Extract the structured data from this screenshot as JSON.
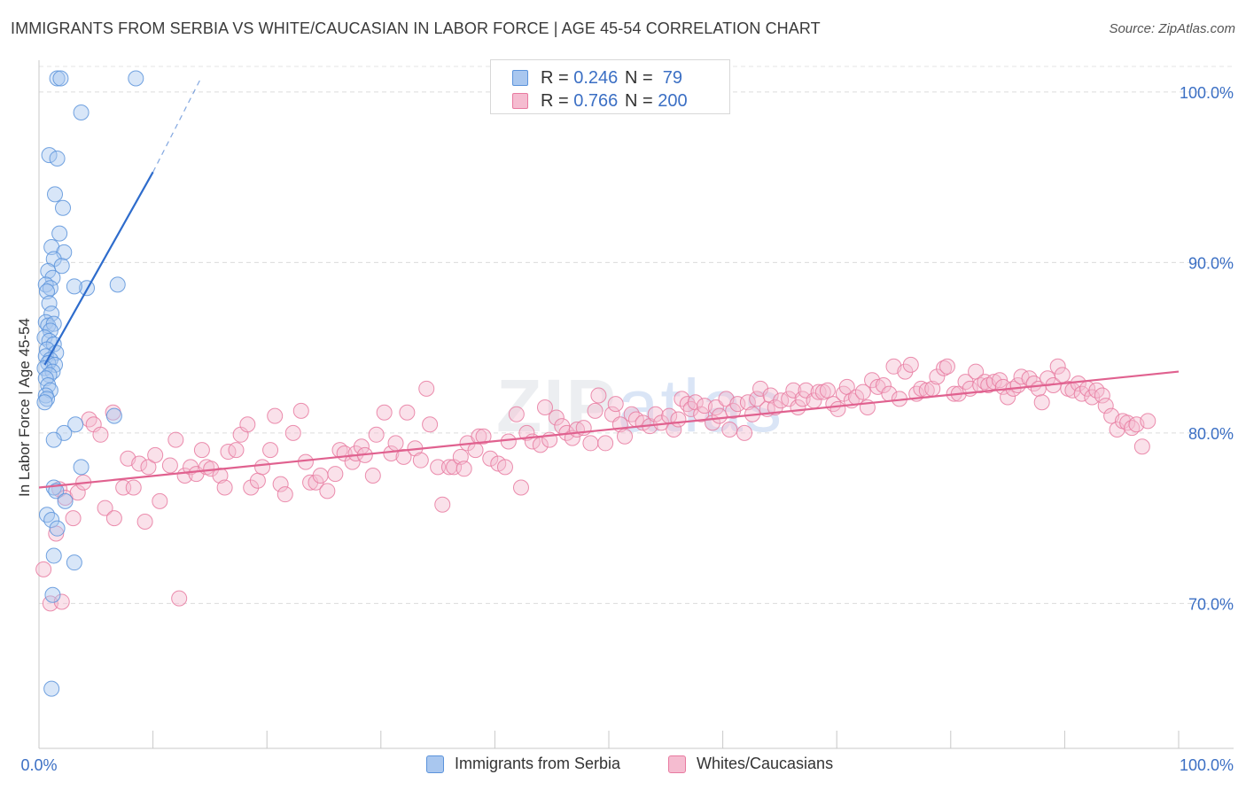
{
  "title": "IMMIGRANTS FROM SERBIA VS WHITE/CAUCASIAN IN LABOR FORCE | AGE 45-54 CORRELATION CHART",
  "source": "Source: ZipAtlas.com",
  "watermark": {
    "zip": "ZIP",
    "atlas": "atlas"
  },
  "colors": {
    "blue": "#5b93db",
    "blue_fill": "#a9c7ef",
    "pink": "#e87aa0",
    "pink_fill": "#f5bcd0",
    "axis_blue": "#3b6fc4",
    "blue_line": "#2e6ccc",
    "pink_line": "#e0618f"
  },
  "legend_top": [
    {
      "r_label": "R = ",
      "r_value": "0.246",
      "n_label": "N = ",
      "n_value": " 79",
      "color": "blue"
    },
    {
      "r_label": "R = ",
      "r_value": "0.766",
      "n_label": "N = ",
      "n_value": "200",
      "color": "pink"
    }
  ],
  "legend_bottom": [
    {
      "label": "Immigrants from Serbia",
      "color": "blue"
    },
    {
      "label": "Whites/Caucasians",
      "color": "pink"
    }
  ],
  "chart_data": {
    "type": "scatter",
    "title": "IMMIGRANTS FROM SERBIA VS WHITE/CAUCASIAN IN LABOR FORCE | AGE 45-54 CORRELATION CHART",
    "xlabel": "",
    "ylabel": "In Labor Force | Age 45-54",
    "xlim": [
      0,
      100
    ],
    "ylim": [
      61.5,
      101.5
    ],
    "x_tick_labels": [
      {
        "value": 0,
        "label": "0.0%"
      },
      {
        "value": 100,
        "label": "100.0%"
      }
    ],
    "y_tick_labels": [
      {
        "value": 100,
        "label": "100.0%"
      },
      {
        "value": 90,
        "label": "90.0%"
      },
      {
        "value": 80,
        "label": "80.0%"
      },
      {
        "value": 70,
        "label": "70.0%"
      }
    ],
    "series": [
      {
        "name": "Immigrants from Serbia",
        "color": "blue",
        "R": 0.246,
        "N": 79,
        "trend": {
          "solid": [
            [
              0.5,
              84.0
            ],
            [
              10.0,
              95.3
            ]
          ],
          "dashed": [
            [
              10.0,
              95.3
            ],
            [
              14.2,
              100.8
            ]
          ]
        },
        "points": [
          [
            1.6,
            100.8
          ],
          [
            1.9,
            100.8
          ],
          [
            8.5,
            100.8
          ],
          [
            3.7,
            98.8
          ],
          [
            0.9,
            96.3
          ],
          [
            1.6,
            96.1
          ],
          [
            1.4,
            94.0
          ],
          [
            2.1,
            93.2
          ],
          [
            1.8,
            91.7
          ],
          [
            1.1,
            90.9
          ],
          [
            2.2,
            90.6
          ],
          [
            1.3,
            90.2
          ],
          [
            2.0,
            89.8
          ],
          [
            0.8,
            89.5
          ],
          [
            1.2,
            89.1
          ],
          [
            0.6,
            88.7
          ],
          [
            1.0,
            88.5
          ],
          [
            0.7,
            88.3
          ],
          [
            4.2,
            88.5
          ],
          [
            6.9,
            88.7
          ],
          [
            3.1,
            88.6
          ],
          [
            0.9,
            87.6
          ],
          [
            1.1,
            87.0
          ],
          [
            0.6,
            86.5
          ],
          [
            0.8,
            86.3
          ],
          [
            1.3,
            86.4
          ],
          [
            1.0,
            86.0
          ],
          [
            0.5,
            85.6
          ],
          [
            0.9,
            85.4
          ],
          [
            1.3,
            85.2
          ],
          [
            0.7,
            84.9
          ],
          [
            1.5,
            84.7
          ],
          [
            0.6,
            84.5
          ],
          [
            1.0,
            84.3
          ],
          [
            0.8,
            84.1
          ],
          [
            1.4,
            84.0
          ],
          [
            0.5,
            83.8
          ],
          [
            1.2,
            83.6
          ],
          [
            0.9,
            83.4
          ],
          [
            0.6,
            83.2
          ],
          [
            0.8,
            82.8
          ],
          [
            1.0,
            82.5
          ],
          [
            0.6,
            82.2
          ],
          [
            0.7,
            82.0
          ],
          [
            0.5,
            81.8
          ],
          [
            3.2,
            80.5
          ],
          [
            6.6,
            81.0
          ],
          [
            2.2,
            80.0
          ],
          [
            1.3,
            79.6
          ],
          [
            3.7,
            78.0
          ],
          [
            1.3,
            76.8
          ],
          [
            1.5,
            76.6
          ],
          [
            2.3,
            76.0
          ],
          [
            0.7,
            75.2
          ],
          [
            1.1,
            74.9
          ],
          [
            1.6,
            74.4
          ],
          [
            3.1,
            72.4
          ],
          [
            1.3,
            72.8
          ],
          [
            1.2,
            70.5
          ],
          [
            1.1,
            65.0
          ]
        ]
      },
      {
        "name": "Whites/Caucasians",
        "color": "pink",
        "R": 0.766,
        "N": 200,
        "trend": {
          "solid": [
            [
              0.0,
              76.8
            ],
            [
              100.0,
              83.6
            ]
          ]
        },
        "points": [
          [
            0.4,
            72.0
          ],
          [
            1.0,
            70.0
          ],
          [
            2.0,
            70.1
          ],
          [
            1.5,
            74.1
          ],
          [
            3.0,
            75.0
          ],
          [
            1.8,
            76.7
          ],
          [
            2.3,
            76.2
          ],
          [
            3.4,
            76.5
          ],
          [
            3.9,
            77.1
          ],
          [
            4.4,
            80.8
          ],
          [
            4.8,
            80.5
          ],
          [
            5.4,
            79.9
          ],
          [
            5.8,
            75.6
          ],
          [
            6.6,
            75.0
          ],
          [
            6.5,
            81.2
          ],
          [
            7.4,
            76.8
          ],
          [
            7.8,
            78.5
          ],
          [
            8.3,
            76.8
          ],
          [
            8.8,
            78.2
          ],
          [
            9.3,
            74.8
          ],
          [
            9.6,
            78.0
          ],
          [
            10.2,
            78.7
          ],
          [
            10.6,
            76.0
          ],
          [
            11.5,
            78.1
          ],
          [
            12.0,
            79.6
          ],
          [
            12.3,
            70.3
          ],
          [
            12.8,
            77.5
          ],
          [
            13.3,
            78.0
          ],
          [
            13.8,
            77.6
          ],
          [
            14.3,
            79.0
          ],
          [
            14.7,
            78.0
          ],
          [
            15.1,
            77.9
          ],
          [
            15.9,
            77.5
          ],
          [
            16.3,
            76.8
          ],
          [
            16.6,
            78.9
          ],
          [
            17.3,
            79.0
          ],
          [
            17.7,
            79.9
          ],
          [
            18.3,
            80.5
          ],
          [
            18.6,
            76.8
          ],
          [
            19.2,
            77.2
          ],
          [
            19.6,
            78.0
          ],
          [
            20.3,
            79.0
          ],
          [
            20.7,
            81.0
          ],
          [
            21.2,
            77.0
          ],
          [
            21.6,
            76.4
          ],
          [
            22.3,
            80.0
          ],
          [
            23.0,
            81.3
          ],
          [
            23.4,
            78.3
          ],
          [
            23.8,
            77.1
          ],
          [
            24.3,
            77.1
          ],
          [
            24.7,
            77.5
          ],
          [
            25.3,
            76.6
          ],
          [
            26.0,
            77.6
          ],
          [
            26.4,
            79.0
          ],
          [
            26.8,
            78.8
          ],
          [
            27.5,
            78.3
          ],
          [
            27.8,
            78.8
          ],
          [
            28.3,
            79.2
          ],
          [
            28.6,
            78.7
          ],
          [
            29.3,
            77.5
          ],
          [
            29.6,
            79.9
          ],
          [
            30.3,
            81.2
          ],
          [
            30.9,
            78.8
          ],
          [
            31.3,
            79.4
          ],
          [
            32.0,
            78.6
          ],
          [
            32.3,
            81.2
          ],
          [
            33.0,
            79.1
          ],
          [
            33.5,
            78.4
          ],
          [
            34.0,
            82.6
          ],
          [
            34.3,
            80.5
          ],
          [
            35.0,
            78.0
          ],
          [
            35.4,
            75.8
          ],
          [
            36.0,
            78.0
          ],
          [
            36.4,
            78.0
          ],
          [
            37.0,
            78.6
          ],
          [
            37.3,
            77.9
          ],
          [
            37.6,
            79.4
          ],
          [
            38.3,
            79.0
          ],
          [
            38.6,
            79.8
          ],
          [
            39.0,
            79.8
          ],
          [
            39.6,
            78.5
          ],
          [
            40.3,
            78.2
          ],
          [
            40.9,
            78.0
          ],
          [
            41.2,
            79.5
          ],
          [
            41.9,
            81.1
          ],
          [
            42.3,
            76.8
          ],
          [
            42.8,
            80.0
          ],
          [
            43.3,
            79.5
          ],
          [
            44.0,
            79.3
          ],
          [
            44.4,
            81.5
          ],
          [
            44.8,
            79.6
          ],
          [
            45.4,
            80.9
          ],
          [
            45.9,
            80.4
          ],
          [
            46.3,
            80.0
          ],
          [
            46.8,
            79.7
          ],
          [
            47.2,
            80.2
          ],
          [
            47.8,
            80.3
          ],
          [
            48.4,
            79.4
          ],
          [
            48.8,
            81.3
          ],
          [
            49.1,
            82.2
          ],
          [
            49.7,
            79.4
          ],
          [
            50.3,
            81.1
          ],
          [
            50.6,
            81.7
          ],
          [
            51.0,
            80.5
          ],
          [
            51.4,
            79.8
          ],
          [
            52.0,
            81.1
          ],
          [
            52.4,
            80.8
          ],
          [
            53.0,
            80.6
          ],
          [
            53.6,
            80.4
          ],
          [
            54.1,
            81.1
          ],
          [
            54.6,
            80.6
          ],
          [
            55.3,
            81.0
          ],
          [
            55.7,
            80.2
          ],
          [
            56.1,
            80.8
          ],
          [
            56.4,
            82.0
          ],
          [
            56.9,
            81.7
          ],
          [
            57.2,
            81.4
          ],
          [
            57.6,
            81.8
          ],
          [
            58.1,
            81.1
          ],
          [
            58.4,
            81.6
          ],
          [
            59.1,
            80.6
          ],
          [
            59.4,
            81.5
          ],
          [
            59.7,
            81.0
          ],
          [
            60.3,
            82.0
          ],
          [
            60.6,
            80.2
          ],
          [
            60.9,
            81.3
          ],
          [
            61.3,
            81.7
          ],
          [
            61.9,
            80.0
          ],
          [
            62.2,
            81.8
          ],
          [
            62.6,
            81.1
          ],
          [
            63.0,
            82.0
          ],
          [
            63.3,
            82.6
          ],
          [
            63.9,
            81.4
          ],
          [
            64.2,
            82.2
          ],
          [
            64.6,
            81.5
          ],
          [
            65.1,
            81.9
          ],
          [
            65.8,
            82.0
          ],
          [
            66.2,
            82.5
          ],
          [
            66.6,
            81.5
          ],
          [
            67.0,
            82.0
          ],
          [
            67.3,
            82.5
          ],
          [
            68.0,
            81.9
          ],
          [
            68.4,
            82.4
          ],
          [
            68.8,
            82.4
          ],
          [
            69.2,
            82.5
          ],
          [
            69.7,
            81.7
          ],
          [
            70.1,
            81.4
          ],
          [
            70.6,
            82.3
          ],
          [
            70.9,
            82.7
          ],
          [
            71.3,
            81.9
          ],
          [
            71.7,
            82.1
          ],
          [
            72.3,
            82.4
          ],
          [
            72.7,
            81.5
          ],
          [
            73.1,
            83.1
          ],
          [
            73.6,
            82.7
          ],
          [
            74.1,
            82.8
          ],
          [
            74.6,
            82.3
          ],
          [
            75.0,
            83.9
          ],
          [
            75.5,
            82.0
          ],
          [
            76.0,
            83.6
          ],
          [
            76.5,
            84.0
          ],
          [
            77.0,
            82.3
          ],
          [
            77.4,
            82.6
          ],
          [
            77.9,
            82.5
          ],
          [
            78.4,
            82.6
          ],
          [
            78.8,
            83.3
          ],
          [
            79.4,
            83.8
          ],
          [
            79.7,
            83.9
          ],
          [
            80.3,
            82.3
          ],
          [
            80.7,
            82.3
          ],
          [
            81.3,
            83.0
          ],
          [
            81.7,
            82.6
          ],
          [
            82.2,
            83.6
          ],
          [
            82.6,
            82.8
          ],
          [
            83.0,
            83.0
          ],
          [
            83.3,
            82.8
          ],
          [
            83.8,
            83.0
          ],
          [
            84.3,
            83.1
          ],
          [
            84.6,
            82.7
          ],
          [
            85.0,
            82.1
          ],
          [
            85.5,
            82.6
          ],
          [
            85.9,
            82.8
          ],
          [
            86.2,
            83.3
          ],
          [
            86.9,
            83.2
          ],
          [
            87.3,
            82.9
          ],
          [
            87.7,
            82.6
          ],
          [
            88.0,
            81.8
          ],
          [
            88.5,
            83.2
          ],
          [
            89.0,
            82.8
          ],
          [
            89.4,
            83.9
          ],
          [
            89.8,
            83.4
          ],
          [
            90.3,
            82.6
          ],
          [
            90.7,
            82.5
          ],
          [
            91.2,
            82.9
          ],
          [
            91.5,
            82.3
          ],
          [
            92.0,
            82.6
          ],
          [
            92.4,
            82.1
          ],
          [
            92.8,
            82.5
          ],
          [
            93.3,
            82.2
          ],
          [
            93.6,
            81.6
          ],
          [
            94.1,
            81.0
          ],
          [
            94.6,
            80.2
          ],
          [
            95.1,
            80.7
          ],
          [
            95.5,
            80.6
          ],
          [
            95.9,
            80.3
          ],
          [
            96.3,
            80.5
          ],
          [
            96.8,
            79.2
          ],
          [
            97.3,
            80.7
          ]
        ]
      }
    ]
  }
}
